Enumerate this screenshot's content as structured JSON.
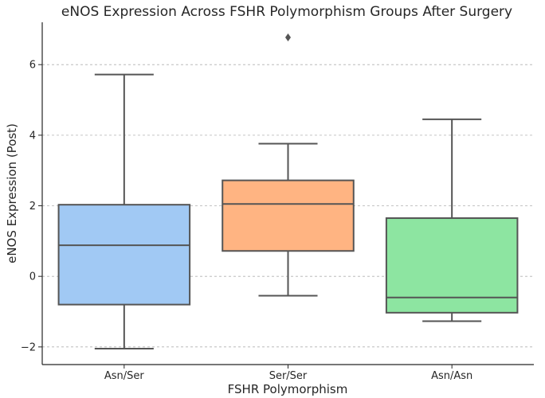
{
  "chart_data": {
    "type": "box",
    "title": "eNOS Expression Across FSHR Polymorphism Groups After Surgery",
    "xlabel": "FSHR Polymorphism",
    "ylabel": "eNOS Expression (Post)",
    "ylim": [
      -2.5,
      7.2
    ],
    "yticks": [
      -2,
      0,
      2,
      4,
      6
    ],
    "ytick_labels": [
      "−2",
      "0",
      "2",
      "4",
      "6"
    ],
    "grid": "y",
    "categories": [
      "Asn/Ser",
      "Ser/Ser",
      "Asn/Asn"
    ],
    "colors": [
      "#a1c9f4",
      "#ffb482",
      "#8de5a1"
    ],
    "boxes": [
      {
        "category": "Asn/Ser",
        "whisker_low": -2.05,
        "q1": -0.8,
        "median": 0.88,
        "q3": 2.03,
        "whisker_high": 5.72,
        "outliers": []
      },
      {
        "category": "Ser/Ser",
        "whisker_low": -0.55,
        "q1": 0.72,
        "median": 2.05,
        "q3": 2.72,
        "whisker_high": 3.76,
        "outliers": [
          6.77
        ]
      },
      {
        "category": "Asn/Asn",
        "whisker_low": -1.27,
        "q1": -1.03,
        "median": -0.6,
        "q3": 1.65,
        "whisker_high": 4.45,
        "outliers": []
      }
    ]
  }
}
